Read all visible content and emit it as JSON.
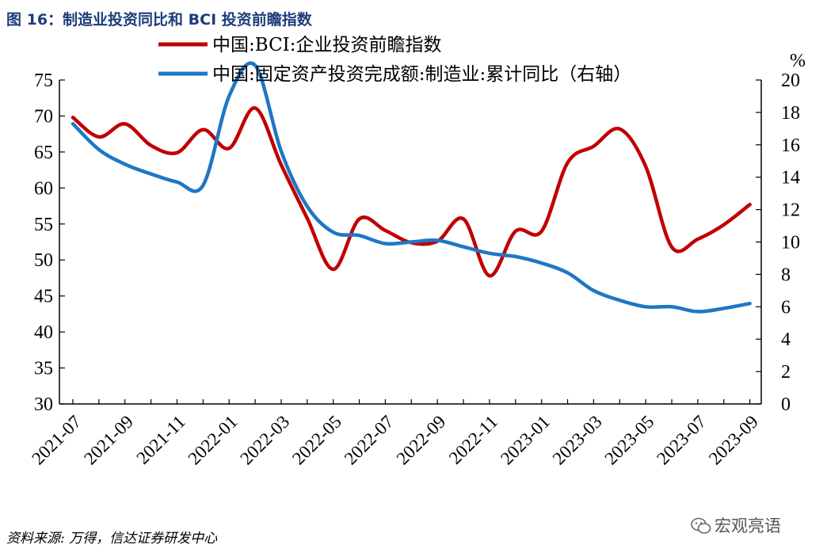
{
  "figure": {
    "title": "图 16：制造业投资同比和 BCI 投资前瞻指数",
    "source": "资料来源: 万得，信达证券研发中心",
    "watermark": "宏观亮语",
    "watermark_icon": "wechat-icon"
  },
  "chart_data": {
    "type": "line",
    "x_tick_labels": [
      "2021-07",
      "2021-09",
      "2021-11",
      "2022-01",
      "2022-03",
      "2022-05",
      "2022-07",
      "2022-09",
      "2022-11",
      "2023-01",
      "2023-03",
      "2023-05",
      "2023-07",
      "2023-09"
    ],
    "x": [
      "2021-07",
      "2021-08",
      "2021-09",
      "2021-10",
      "2021-11",
      "2021-12",
      "2022-01",
      "2022-02",
      "2022-03",
      "2022-04",
      "2022-05",
      "2022-06",
      "2022-07",
      "2022-08",
      "2022-09",
      "2022-10",
      "2022-11",
      "2022-12",
      "2023-01",
      "2023-02",
      "2023-03",
      "2023-04",
      "2023-05",
      "2023-06",
      "2023-07",
      "2023-08",
      "2023-09"
    ],
    "left_axis": {
      "ylim": [
        30,
        75
      ],
      "ticks": [
        30,
        35,
        40,
        45,
        50,
        55,
        60,
        65,
        70,
        75
      ]
    },
    "right_axis": {
      "ylim": [
        0,
        20
      ],
      "ticks": [
        0,
        2,
        4,
        6,
        8,
        10,
        12,
        14,
        16,
        18,
        20
      ],
      "unit": "%"
    },
    "series": [
      {
        "name": "中国:BCI:企业投资前瞻指数",
        "axis": "left",
        "color": "#c00000",
        "values": [
          69.8,
          67.1,
          68.9,
          65.9,
          64.9,
          68.1,
          65.5,
          71.1,
          63.2,
          55.8,
          48.7,
          55.7,
          54.1,
          52.4,
          52.6,
          55.7,
          47.8,
          54.0,
          54.0,
          63.5,
          65.8,
          68.2,
          63.0,
          51.8,
          52.9,
          54.9,
          57.7
        ]
      },
      {
        "name": "中国:固定资产投资完成额:制造业:累计同比（右轴）",
        "axis": "right",
        "color": "#1f77c4",
        "values": [
          17.3,
          15.7,
          14.8,
          14.2,
          13.7,
          13.5,
          19.0,
          20.9,
          15.6,
          12.2,
          10.6,
          10.4,
          9.9,
          10.0,
          10.1,
          9.7,
          9.3,
          9.1,
          8.7,
          8.1,
          7.0,
          6.4,
          6.0,
          6.0,
          5.7,
          5.9,
          6.2
        ]
      }
    ]
  }
}
